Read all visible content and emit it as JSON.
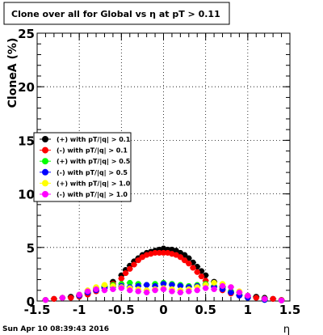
{
  "chart_data": {
    "type": "scatter",
    "title": "Clone  over all for Global vs  η at pT > 0.11",
    "xlabel": "η",
    "ylabel": "CloneA (%)",
    "xlim": [
      -1.5,
      1.5
    ],
    "ylim": [
      0,
      25
    ],
    "x_ticks": [
      "-1.5",
      "-1",
      "-0.5",
      "0",
      "0.5",
      "1",
      "1.5"
    ],
    "y_ticks": [
      "0",
      "5",
      "10",
      "15",
      "20",
      "25"
    ],
    "grid": true,
    "legend_position": "middle-left",
    "series": [
      {
        "name": "(+) with pT/|q| > 0.1",
        "color": "#000000",
        "x": [
          -1.4,
          -1.3,
          -1.2,
          -1.1,
          -1.0,
          -0.9,
          -0.8,
          -0.7,
          -0.6,
          -0.5,
          -0.45,
          -0.4,
          -0.35,
          -0.3,
          -0.25,
          -0.2,
          -0.15,
          -0.1,
          -0.05,
          0.0,
          0.05,
          0.1,
          0.15,
          0.2,
          0.25,
          0.3,
          0.35,
          0.4,
          0.45,
          0.5,
          0.6,
          0.7,
          0.8,
          0.9,
          1.0,
          1.1,
          1.2,
          1.3,
          1.4
        ],
        "y": [
          0.1,
          0.2,
          0.3,
          0.4,
          0.5,
          0.7,
          1.0,
          1.3,
          1.8,
          2.4,
          2.9,
          3.3,
          3.7,
          4.0,
          4.3,
          4.5,
          4.6,
          4.7,
          4.8,
          4.9,
          4.8,
          4.8,
          4.7,
          4.5,
          4.3,
          4.0,
          3.6,
          3.2,
          2.8,
          2.4,
          1.8,
          1.3,
          0.9,
          0.6,
          0.5,
          0.4,
          0.3,
          0.2,
          0.1
        ]
      },
      {
        "name": "(-) with pT/|q| > 0.1",
        "color": "#ff0000",
        "x": [
          -1.4,
          -1.3,
          -1.2,
          -1.1,
          -1.0,
          -0.9,
          -0.8,
          -0.7,
          -0.6,
          -0.5,
          -0.45,
          -0.4,
          -0.35,
          -0.3,
          -0.25,
          -0.2,
          -0.15,
          -0.1,
          -0.05,
          0.0,
          0.05,
          0.1,
          0.15,
          0.2,
          0.25,
          0.3,
          0.35,
          0.4,
          0.45,
          0.5,
          0.6,
          0.7,
          0.8,
          0.9,
          1.0,
          1.1,
          1.2,
          1.3,
          1.4
        ],
        "y": [
          0.1,
          0.2,
          0.3,
          0.3,
          0.4,
          0.6,
          0.9,
          1.2,
          1.6,
          2.1,
          2.6,
          3.0,
          3.4,
          3.8,
          4.1,
          4.3,
          4.4,
          4.5,
          4.5,
          4.5,
          4.5,
          4.4,
          4.3,
          4.1,
          3.8,
          3.5,
          3.1,
          2.7,
          2.3,
          1.9,
          1.4,
          1.0,
          0.7,
          0.5,
          0.4,
          0.3,
          0.2,
          0.2,
          0.1
        ]
      },
      {
        "name": "(+) with pT/|q| > 0.5",
        "color": "#00ff00",
        "x": [
          -1.4,
          -1.2,
          -1.0,
          -0.9,
          -0.8,
          -0.7,
          -0.6,
          -0.5,
          -0.4,
          -0.3,
          -0.2,
          -0.1,
          0.0,
          0.1,
          0.2,
          0.3,
          0.4,
          0.5,
          0.6,
          0.7,
          0.8,
          0.9,
          1.0,
          1.2,
          1.4
        ],
        "y": [
          0.1,
          0.3,
          0.6,
          0.9,
          1.2,
          1.4,
          1.5,
          1.6,
          1.7,
          1.6,
          1.5,
          1.6,
          1.7,
          1.6,
          1.5,
          1.4,
          1.5,
          1.6,
          1.4,
          1.2,
          0.9,
          0.6,
          0.3,
          0.1,
          0.05
        ]
      },
      {
        "name": "(-) with pT/|q| > 0.5",
        "color": "#0000ff",
        "x": [
          -1.4,
          -1.2,
          -1.0,
          -0.9,
          -0.8,
          -0.7,
          -0.6,
          -0.5,
          -0.4,
          -0.3,
          -0.2,
          -0.1,
          0.0,
          0.1,
          0.2,
          0.3,
          0.4,
          0.5,
          0.6,
          0.7,
          0.8,
          0.9,
          1.0,
          1.2,
          1.4
        ],
        "y": [
          0.1,
          0.3,
          0.5,
          0.8,
          1.0,
          1.2,
          1.3,
          1.4,
          1.3,
          1.4,
          1.5,
          1.4,
          1.6,
          1.5,
          1.4,
          1.3,
          1.4,
          1.5,
          1.3,
          1.1,
          0.8,
          0.5,
          0.3,
          0.1,
          0.05
        ]
      },
      {
        "name": "(+) with pT/|q| > 1.0",
        "color": "#ffff00",
        "x": [
          -1.4,
          -1.2,
          -1.0,
          -0.9,
          -0.8,
          -0.7,
          -0.6,
          -0.5,
          -0.4,
          -0.3,
          -0.2,
          -0.1,
          0.0,
          0.1,
          0.2,
          0.3,
          0.4,
          0.5,
          0.6,
          0.7,
          0.8,
          0.9,
          1.0,
          1.2,
          1.4
        ],
        "y": [
          0.1,
          0.3,
          0.6,
          1.0,
          1.3,
          1.5,
          1.4,
          1.3,
          1.2,
          1.1,
          1.0,
          1.1,
          1.2,
          1.1,
          1.0,
          1.1,
          1.3,
          1.5,
          1.7,
          1.6,
          1.3,
          0.9,
          0.5,
          0.2,
          0.05
        ]
      },
      {
        "name": "(-) with pT/|q| > 1.0",
        "color": "#ff00ff",
        "x": [
          -1.4,
          -1.2,
          -1.0,
          -0.9,
          -0.8,
          -0.7,
          -0.6,
          -0.5,
          -0.4,
          -0.3,
          -0.2,
          -0.1,
          0.0,
          0.1,
          0.2,
          0.3,
          0.4,
          0.5,
          0.6,
          0.7,
          0.8,
          0.9,
          1.0,
          1.2,
          1.4
        ],
        "y": [
          0.1,
          0.3,
          0.6,
          0.9,
          1.1,
          1.0,
          1.1,
          1.2,
          1.0,
          0.9,
          0.8,
          1.0,
          1.1,
          0.9,
          0.8,
          0.9,
          1.0,
          1.2,
          1.1,
          1.4,
          1.3,
          0.8,
          0.5,
          0.2,
          0.05
        ]
      }
    ]
  },
  "footer": {
    "timestamp": "Sun Apr 10 08:39:43 2016"
  }
}
